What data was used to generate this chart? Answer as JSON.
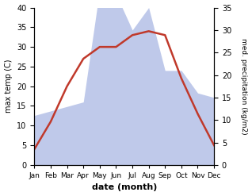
{
  "months": [
    "Jan",
    "Feb",
    "Mar",
    "Apr",
    "May",
    "Jun",
    "Jul",
    "Aug",
    "Sep",
    "Oct",
    "Nov",
    "Dec"
  ],
  "temperature": [
    4,
    11,
    20,
    27,
    30,
    30,
    33,
    34,
    33,
    22,
    13,
    5
  ],
  "precipitation": [
    11,
    12,
    13,
    14,
    39,
    38,
    30,
    35,
    21,
    21,
    16,
    15
  ],
  "temp_color": "#c0392b",
  "precip_color_fill": "#b8c4e8",
  "temp_ylim": [
    0,
    40
  ],
  "precip_ylim": [
    0,
    35
  ],
  "xlabel": "date (month)",
  "ylabel_left": "max temp (C)",
  "ylabel_right": "med. precipitation (kg/m2)",
  "bg_color": "#ffffff"
}
